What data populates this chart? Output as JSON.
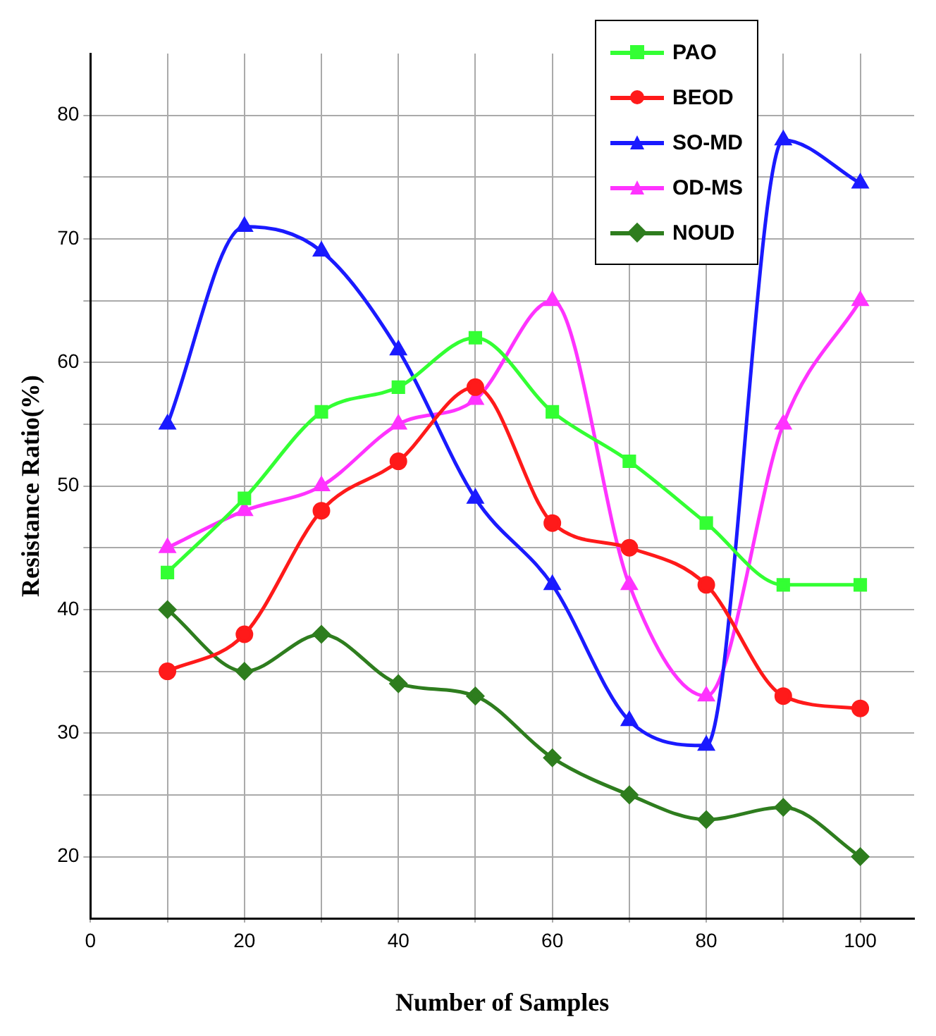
{
  "chart_data": {
    "type": "line",
    "xlabel": "Number of Samples",
    "ylabel": "Resistance Ratio(%)",
    "x": [
      10,
      20,
      30,
      40,
      50,
      60,
      70,
      80,
      90,
      100
    ],
    "series": [
      {
        "name": "PAO",
        "color": "#33ff33",
        "marker": "square",
        "values": [
          43,
          49,
          56,
          58,
          62,
          56,
          52,
          47,
          42,
          42
        ]
      },
      {
        "name": "BEOD",
        "color": "#ff1a1a",
        "marker": "circle",
        "values": [
          35,
          38,
          48,
          52,
          58,
          47,
          45,
          42,
          33,
          32
        ]
      },
      {
        "name": "SO-MD",
        "color": "#1a1aff",
        "marker": "triangle",
        "values": [
          55,
          71,
          69,
          61,
          49,
          42,
          31,
          29,
          78,
          74.5
        ]
      },
      {
        "name": "OD-MS",
        "color": "#ff33ff",
        "marker": "triangle",
        "values": [
          45,
          48,
          50,
          55,
          57,
          65,
          42,
          33,
          55,
          65
        ]
      },
      {
        "name": "NOUD",
        "color": "#2e7d1e",
        "marker": "diamond",
        "values": [
          40,
          35,
          38,
          34,
          33,
          28,
          25,
          23,
          24,
          20
        ]
      }
    ],
    "xlim": [
      0,
      107
    ],
    "ylim": [
      15,
      85
    ],
    "xticks": [
      0,
      {
        "value": 10,
        "label": null
      },
      20,
      {
        "value": 30,
        "label": null
      },
      40,
      {
        "value": 50,
        "label": null
      },
      60,
      {
        "value": 70,
        "label": null
      },
      80,
      {
        "value": 90,
        "label": null
      },
      100
    ],
    "yticks": [
      20,
      {
        "value": 25,
        "label": null
      },
      30,
      {
        "value": 35,
        "label": null
      },
      40,
      {
        "value": 45,
        "label": null
      },
      50,
      {
        "value": 55,
        "label": null
      },
      60,
      {
        "value": 65,
        "label": null
      },
      70,
      {
        "value": 75,
        "label": null
      },
      80
    ],
    "grid": true,
    "legend": "top right",
    "line_style": "solid"
  }
}
